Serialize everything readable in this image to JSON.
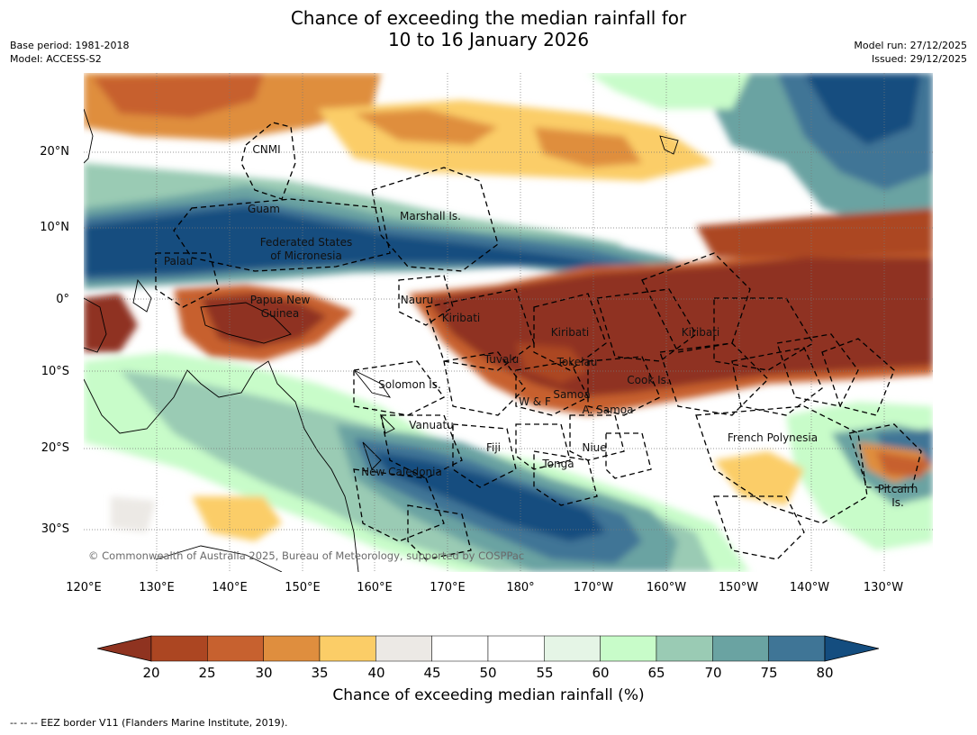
{
  "title": {
    "line1": "Chance of exceeding the median rainfall for",
    "line2": "10 to 16 January 2026"
  },
  "meta": {
    "base_period": "Base period: 1981-2018",
    "model": "Model: ACCESS-S2",
    "model_run": "Model run: 27/12/2025",
    "issued": "Issued: 29/12/2025"
  },
  "map": {
    "longitude_ticks": [
      "120°E",
      "130°E",
      "140°E",
      "150°E",
      "160°E",
      "170°E",
      "180°",
      "170°W",
      "160°W",
      "150°W",
      "140°W",
      "130°W"
    ],
    "latitude_ticks": [
      "20°N",
      "10°N",
      "0°",
      "10°S",
      "20°S",
      "30°S"
    ],
    "regions": {
      "cnmi": "CNMI",
      "guam": "Guam",
      "marshall": "Marshall Is.",
      "fsm1": "Federated States",
      "fsm2": "of Micronesia",
      "palau": "Palau",
      "png1": "Papua New",
      "png2": "Guinea",
      "nauru": "Nauru",
      "kiribati_w": "Kiribati",
      "kiribati_c": "Kiribati",
      "kiribati_e": "Kiribati",
      "tuvalu": "Tuvalu",
      "tokelau": "Tokelau",
      "cook": "Cook Is.",
      "solomon": "Solomon Is.",
      "wf": "W & F",
      "samoa": "Samoa",
      "asamoa": "A. Samoa",
      "vanuatu": "Vanuatu",
      "fiji": "Fiji",
      "niue": "Niue",
      "frpoly": "French Polynesia",
      "tonga": "Tonga",
      "newcal": "New Caledonia",
      "pitcairn1": "Pitcairn",
      "pitcairn2": "Is."
    },
    "copyright": "© Commonwealth of Australia 2025, Bureau of Meteorology, supported by COSPPac"
  },
  "colorbar": {
    "labels": [
      "20",
      "25",
      "30",
      "35",
      "40",
      "45",
      "50",
      "55",
      "60",
      "65",
      "70",
      "75",
      "80"
    ],
    "colors": [
      "#8f3320",
      "#ac4622",
      "#c7612f",
      "#df8e3e",
      "#fbcd67",
      "#ece9e5",
      "#ffffff",
      "#ffffff",
      "#e5f5e6",
      "#c8fcc9",
      "#9acbb4",
      "#6aa3a2",
      "#3f7596",
      "#144d7f"
    ],
    "title": "Chance of exceeding median rainfall (%)"
  },
  "footnote": "--  --  -- EEZ border V11 (Flanders Marine Institute, 2019)."
}
